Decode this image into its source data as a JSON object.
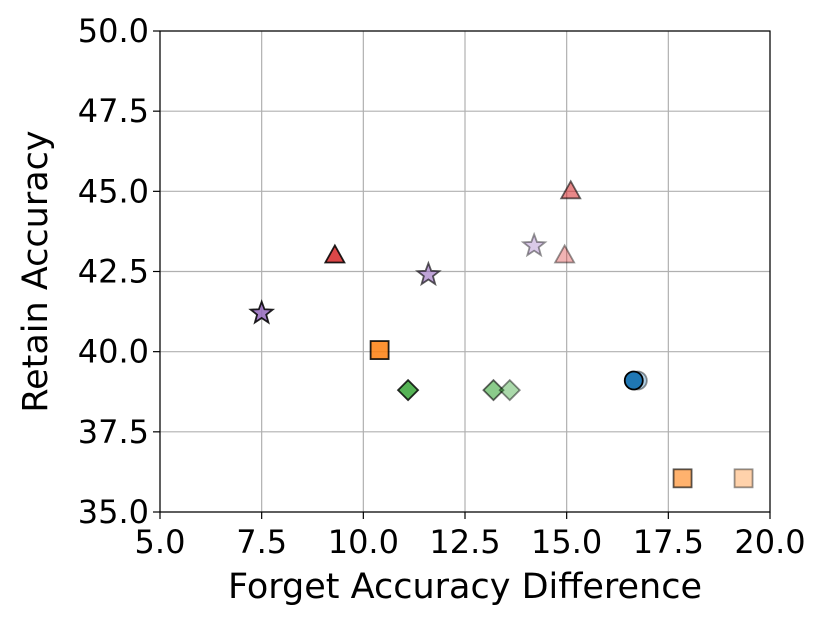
{
  "chart_data": {
    "type": "scatter",
    "xlabel": "Forget Accuracy Difference",
    "ylabel": "Retain Accuracy",
    "xlim": [
      5.0,
      20.0
    ],
    "ylim": [
      35.0,
      50.0
    ],
    "xticks": [
      "5.0",
      "7.5",
      "10.0",
      "12.5",
      "15.0",
      "17.5",
      "20.0"
    ],
    "yticks": [
      "35.0",
      "37.5",
      "40.0",
      "42.5",
      "45.0",
      "47.5",
      "50.0"
    ],
    "grid": true,
    "points": [
      {
        "x": 16.75,
        "y": 39.1,
        "marker": "circle",
        "color": "#1f77b4",
        "alpha": 0.35
      },
      {
        "x": 16.65,
        "y": 39.1,
        "marker": "circle",
        "color": "#1f77b4",
        "alpha": 1.0
      },
      {
        "x": 10.4,
        "y": 40.05,
        "marker": "square",
        "color": "#ff7f0e",
        "alpha": 0.85
      },
      {
        "x": 17.85,
        "y": 36.05,
        "marker": "square",
        "color": "#ff7f0e",
        "alpha": 0.6
      },
      {
        "x": 19.35,
        "y": 36.05,
        "marker": "square",
        "color": "#ff7f0e",
        "alpha": 0.35
      },
      {
        "x": 11.1,
        "y": 38.8,
        "marker": "diamond",
        "color": "#2ca02c",
        "alpha": 0.8
      },
      {
        "x": 13.2,
        "y": 38.8,
        "marker": "diamond",
        "color": "#2ca02c",
        "alpha": 0.55
      },
      {
        "x": 13.6,
        "y": 38.8,
        "marker": "diamond",
        "color": "#2ca02c",
        "alpha": 0.4
      },
      {
        "x": 9.3,
        "y": 43.0,
        "marker": "triangle",
        "color": "#d62728",
        "alpha": 0.85
      },
      {
        "x": 15.1,
        "y": 45.0,
        "marker": "triangle",
        "color": "#d62728",
        "alpha": 0.55
      },
      {
        "x": 14.95,
        "y": 43.0,
        "marker": "triangle",
        "color": "#d62728",
        "alpha": 0.35
      },
      {
        "x": 7.5,
        "y": 41.2,
        "marker": "star",
        "color": "#9467bd",
        "alpha": 0.85
      },
      {
        "x": 11.6,
        "y": 42.4,
        "marker": "star",
        "color": "#9467bd",
        "alpha": 0.6
      },
      {
        "x": 14.2,
        "y": 43.3,
        "marker": "star",
        "color": "#9467bd",
        "alpha": 0.35
      }
    ]
  }
}
